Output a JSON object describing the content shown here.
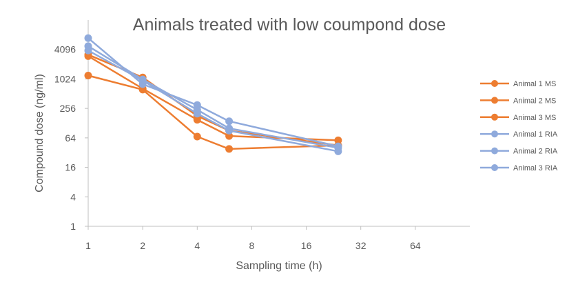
{
  "chart_data": {
    "type": "line",
    "title": "Animals treated with low coumpond dose",
    "xlabel": "Sampling time (h)",
    "ylabel": "Compound dose (ng/ml)",
    "x_scale": "log2",
    "y_scale": "log4",
    "xlim": [
      1,
      128
    ],
    "ylim": [
      1,
      16384
    ],
    "x_ticks": [
      1,
      2,
      4,
      8,
      16,
      32,
      64
    ],
    "x_tick_labels": [
      "1",
      "2",
      "4",
      "8",
      "16",
      "32",
      "64"
    ],
    "y_ticks": [
      1,
      4,
      16,
      64,
      256,
      1024,
      4096
    ],
    "y_tick_labels": [
      "1",
      "4",
      "16",
      "64",
      "256",
      "1024",
      "4096"
    ],
    "x": [
      1,
      2,
      4,
      6,
      24
    ],
    "grid": false,
    "legend_position": "right",
    "colors": {
      "ms": "#ED7D31",
      "ria": "#8FAADC",
      "axis": "#BFBFBF",
      "text": "#595959"
    },
    "series": [
      {
        "name": "Animal 1 MS",
        "color": "#ED7D31",
        "values": [
          1200,
          620,
          68,
          38,
          45
        ]
      },
      {
        "name": "Animal 2 MS",
        "color": "#ED7D31",
        "values": [
          3000,
          650,
          150,
          70,
          57
        ]
      },
      {
        "name": "Animal 3 MS",
        "color": "#ED7D31",
        "values": [
          3200,
          1100,
          180,
          90,
          45
        ]
      },
      {
        "name": "Animal 1 RIA",
        "color": "#8FAADC",
        "values": [
          7000,
          800,
          300,
          140,
          43
        ]
      },
      {
        "name": "Animal 2 RIA",
        "color": "#8FAADC",
        "values": [
          4800,
          1000,
          240,
          100,
          40
        ]
      },
      {
        "name": "Animal 3 RIA",
        "color": "#8FAADC",
        "values": [
          3900,
          950,
          200,
          90,
          34
        ]
      }
    ]
  }
}
